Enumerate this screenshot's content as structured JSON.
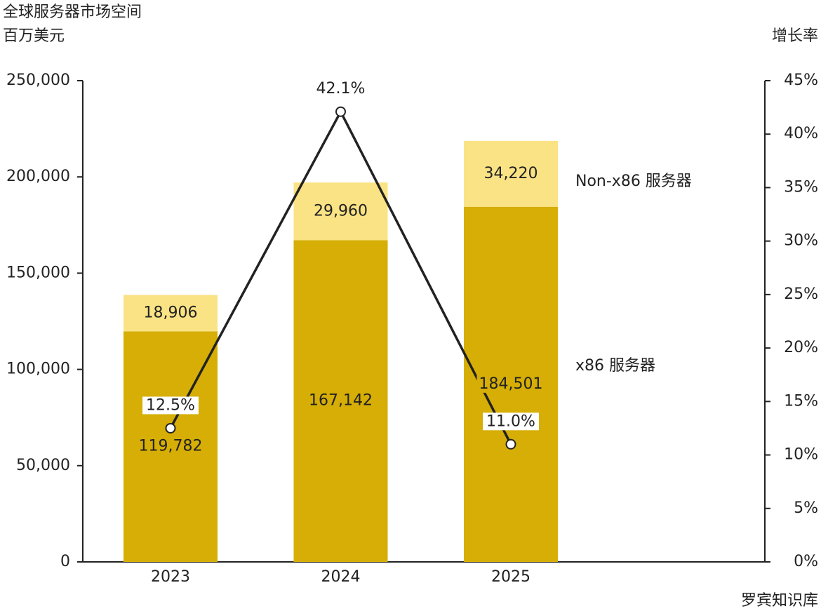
{
  "chart_data": {
    "type": "bar",
    "title": "全球服务器市场空间",
    "y_label": "百万美元",
    "y2_label": "增长率",
    "source": "罗宾知识库",
    "categories": [
      "2023",
      "2024",
      "2025"
    ],
    "series": [
      {
        "name": "x86 服务器",
        "color": "#d6ae05",
        "values": [
          119782,
          167142,
          184501
        ],
        "value_labels": [
          "119,782",
          "167,142",
          "184,501"
        ]
      },
      {
        "name": "Non-x86 服务器",
        "color": "#fae384",
        "values": [
          18906,
          29960,
          34220
        ],
        "value_labels": [
          "18,906",
          "29,960",
          "34,220"
        ]
      },
      {
        "name": "增长率",
        "type": "line",
        "axis": "y2",
        "color": "#222222",
        "values": [
          12.5,
          42.1,
          11.0
        ],
        "value_labels": [
          "12.5%",
          "42.1%",
          "11.0%"
        ]
      }
    ],
    "ylim": [
      0,
      250000
    ],
    "yticks": [
      0,
      {
        "value": 50000,
        "label": "50,000"
      },
      {
        "value": 100000,
        "label": "100,000"
      },
      {
        "value": 150000,
        "label": "150,000"
      },
      {
        "value": 200000,
        "label": "200,000"
      },
      {
        "value": 250000,
        "label": "250,000"
      }
    ],
    "y2lim": [
      0,
      45
    ],
    "y2ticks": [
      {
        "value": 0,
        "label": "0%"
      },
      {
        "value": 5,
        "label": "5%"
      },
      {
        "value": 10,
        "label": "10%"
      },
      {
        "value": 15,
        "label": "15%"
      },
      {
        "value": 20,
        "label": "20%"
      },
      {
        "value": 25,
        "label": "25%"
      },
      {
        "value": 30,
        "label": "30%"
      },
      {
        "value": 35,
        "label": "35%"
      },
      {
        "value": 40,
        "label": "40%"
      },
      {
        "value": 45,
        "label": "45%"
      }
    ]
  }
}
